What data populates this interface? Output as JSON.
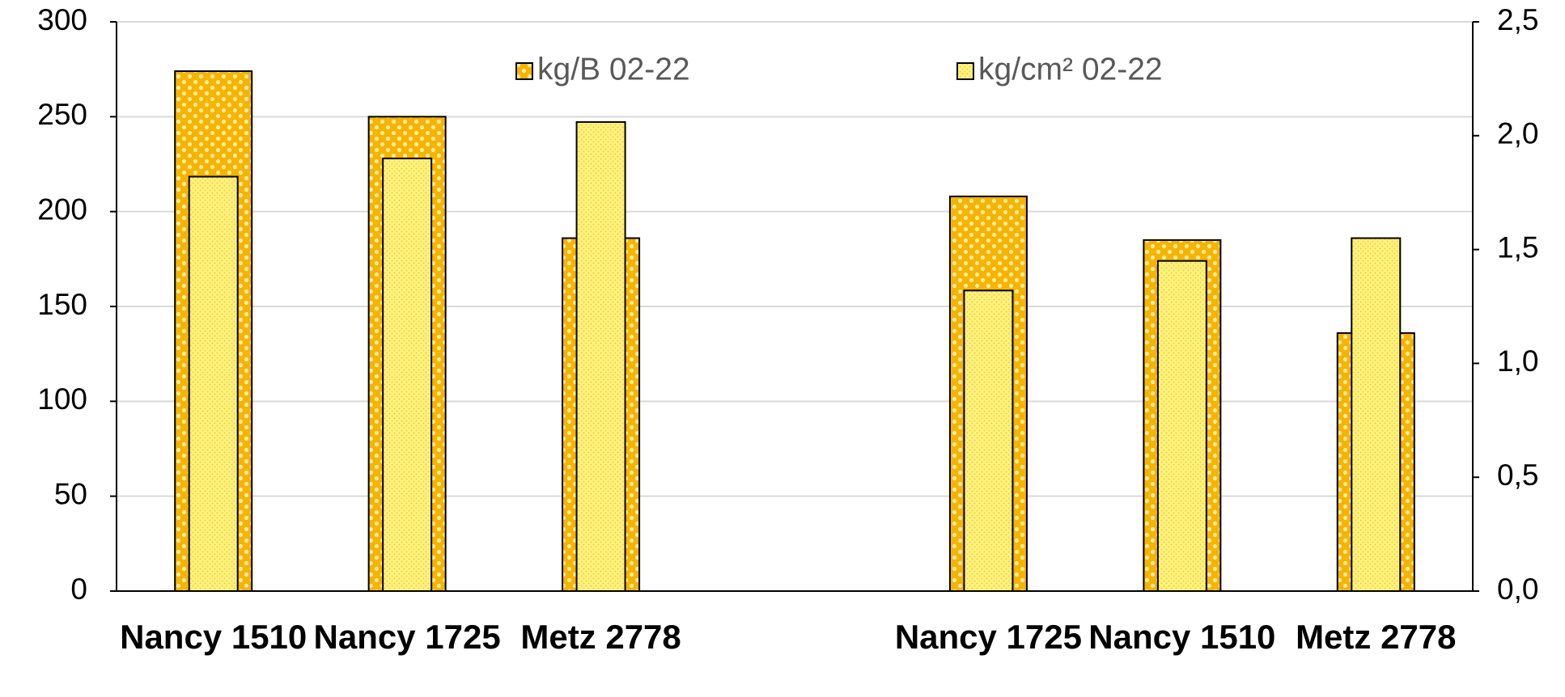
{
  "chart_data": {
    "type": "bar",
    "categories": [
      "Nancy 1510",
      "Nancy 1725",
      "Metz 2778",
      null,
      "Nancy 1725",
      "Nancy 1510",
      "Metz 2778"
    ],
    "series": [
      {
        "name": "kg/B 02-22",
        "color": "#f5b400",
        "values": [
          274,
          250,
          186,
          null,
          208,
          185,
          136
        ]
      },
      {
        "name": "kg/cm² 02-22",
        "color": "#fff27a",
        "axis": "y2",
        "values": [
          1.82,
          1.9,
          2.06,
          null,
          1.32,
          1.45,
          1.55
        ]
      }
    ],
    "ylim": [
      0,
      300
    ],
    "yticks": [
      0,
      50,
      100,
      150,
      200,
      250,
      300
    ],
    "y2lim": [
      0,
      2.5
    ],
    "y2ticks": [
      {
        "value": 0,
        "label": "0,0"
      },
      {
        "value": 0.5,
        "label": "0,5"
      },
      {
        "value": 1,
        "label": "1,0"
      },
      {
        "value": 1.5,
        "label": "1,5"
      },
      {
        "value": 2,
        "label": "2,0"
      },
      {
        "value": 2.5,
        "label": "2,5"
      }
    ],
    "grid": true
  }
}
